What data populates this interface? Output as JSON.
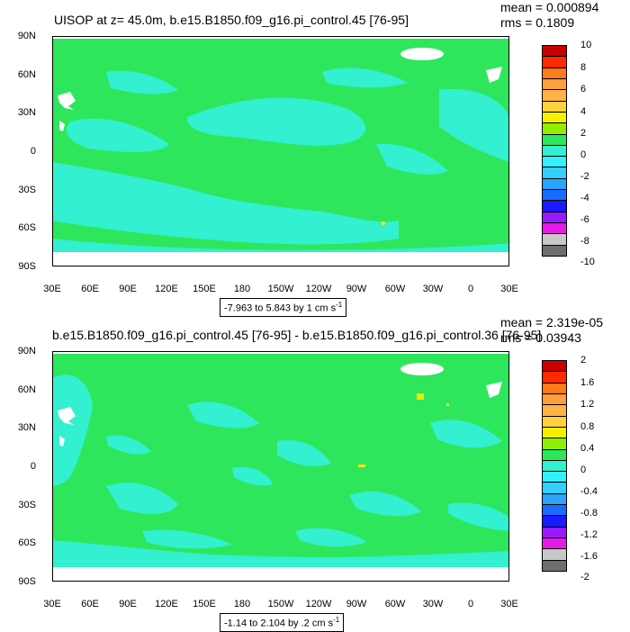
{
  "colors": {
    "green": "#2ee65c",
    "cyan": "#33f0d0",
    "land": "#ffffff",
    "yellow": "#f5e600"
  },
  "axis": {
    "y_ticks": [
      "90N",
      "60N",
      "30N",
      "0",
      "30S",
      "60S",
      "90S"
    ],
    "x_ticks": [
      "30E",
      "60E",
      "90E",
      "120E",
      "150E",
      "180",
      "150W",
      "120W",
      "90W",
      "60W",
      "30W",
      "0",
      "30E"
    ]
  },
  "panels": [
    {
      "title": "UISOP at z=  45.0m, b.e15.B1850.f09_g16.pi_control.45 [76-95]",
      "mean": "mean = 0.000894",
      "rms": "rms = 0.1809",
      "range_text": "-7.963 to 5.843 by 1 cm s",
      "range_exp": "-1",
      "colorbar_labels": [
        "10",
        "8",
        "6",
        "4",
        "2",
        "0",
        "-2",
        "-4",
        "-6",
        "-8",
        "-10"
      ]
    },
    {
      "title": "b.e15.B1850.f09_g16.pi_control.45 [76-95] - b.e15.B1850.f09_g16.pi_control.36 [76-95]",
      "mean": "mean = 2.319e-05",
      "rms": "rms = 0.03943",
      "range_text": "-1.14 to 2.104 by .2 cm s",
      "range_exp": "-1",
      "colorbar_labels": [
        "2",
        "1.6",
        "1.2",
        "0.8",
        "0.4",
        "0",
        "-0.4",
        "-0.8",
        "-1.2",
        "-1.6",
        "-2"
      ]
    }
  ],
  "colorbar_colors": [
    "#c80000",
    "#ff2a00",
    "#ff7a1a",
    "#ff9e3d",
    "#ffb347",
    "#ffd23d",
    "#f5f000",
    "#8ef000",
    "#2ee65c",
    "#33f0d0",
    "#33f0ff",
    "#33d0ff",
    "#2aa4ff",
    "#1a6cff",
    "#1a1aff",
    "#9a1aff",
    "#e61ae6",
    "#c8c8c8",
    "#6e6e6e"
  ]
}
